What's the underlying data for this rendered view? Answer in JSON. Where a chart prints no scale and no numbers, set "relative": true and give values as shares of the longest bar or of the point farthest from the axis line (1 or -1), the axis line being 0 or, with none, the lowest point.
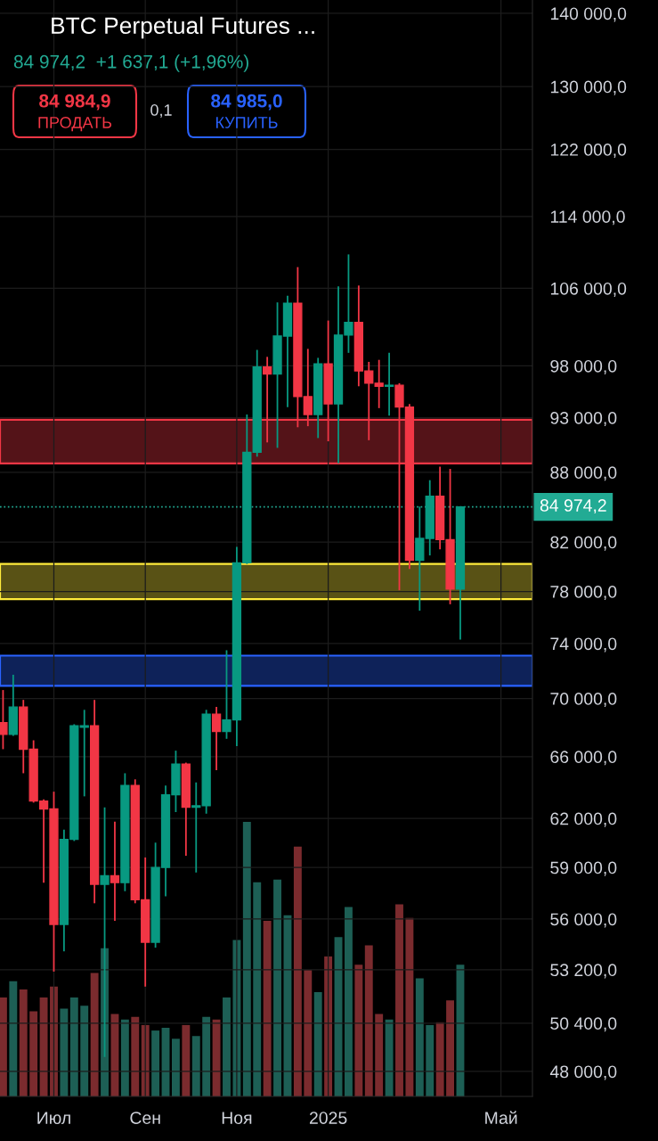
{
  "chart_data": [
    {
      "type": "candlestick",
      "title": "BTC Perpetual Futures ...",
      "subtitle": "84 974,2  +1 637,1 (+1,96%)",
      "annotations": [
        "84 984,9",
        "ПРОДАТЬ",
        "0,1",
        "84 985,0",
        "КУПИТЬ"
      ],
      "categories": [
        null,
        null,
        null,
        null,
        null,
        "Июл",
        null,
        null,
        null,
        null,
        null,
        null,
        null,
        null,
        "Сен",
        null,
        null,
        null,
        null,
        null,
        null,
        null,
        null,
        "Ноя",
        null,
        null,
        null,
        null,
        null,
        null,
        null,
        null,
        "2025",
        null,
        null,
        null,
        null,
        null,
        null,
        null,
        null,
        null,
        null,
        null,
        null,
        null,
        null,
        null,
        null,
        "Май",
        null,
        null,
        null
      ],
      "ohlc": [
        [
          68300,
          70600,
          66500,
          67500
        ],
        [
          67500,
          71700,
          67400,
          69400
        ],
        [
          69400,
          69900,
          64900,
          66500
        ],
        [
          66500,
          67100,
          63000,
          63100
        ],
        [
          63100,
          63200,
          58100,
          62600
        ],
        [
          62600,
          63700,
          53100,
          55700
        ],
        [
          55700,
          61300,
          54200,
          60700
        ],
        [
          60700,
          68200,
          60600,
          68100
        ],
        [
          68000,
          69200,
          63400,
          68100
        ],
        [
          68100,
          69900,
          56900,
          58000
        ],
        [
          58000,
          62700,
          48700,
          58500
        ],
        [
          58500,
          61800,
          55900,
          58100
        ],
        [
          58100,
          64900,
          57600,
          64100
        ],
        [
          64100,
          64500,
          56900,
          57100
        ],
        [
          57100,
          59600,
          52300,
          54700
        ],
        [
          54700,
          60500,
          54400,
          59000
        ],
        [
          59000,
          64100,
          57300,
          63500
        ],
        [
          63500,
          66400,
          62400,
          65500
        ],
        [
          65500,
          65600,
          59700,
          62700
        ],
        [
          62700,
          64300,
          58700,
          62800
        ],
        [
          62800,
          69200,
          62300,
          68900
        ],
        [
          68900,
          69400,
          65100,
          67700
        ],
        [
          67700,
          73500,
          67200,
          68500
        ],
        [
          68500,
          81600,
          66700,
          80300
        ],
        [
          80300,
          93300,
          80200,
          89800
        ],
        [
          89800,
          99600,
          89400,
          97900
        ],
        [
          97900,
          98900,
          90700,
          97200
        ],
        [
          97200,
          104500,
          90200,
          101000
        ],
        [
          101000,
          105200,
          94000,
          104400
        ],
        [
          104400,
          108300,
          92100,
          95000
        ],
        [
          95000,
          99700,
          92200,
          93300
        ],
        [
          93300,
          98800,
          91100,
          98200
        ],
        [
          98200,
          102600,
          90800,
          94300
        ],
        [
          94300,
          106200,
          88800,
          101100
        ],
        [
          101100,
          109700,
          99300,
          102400
        ],
        [
          102400,
          106300,
          96000,
          97500
        ],
        [
          97500,
          98400,
          90900,
          96300
        ],
        [
          96300,
          98600,
          93900,
          96000
        ],
        [
          96000,
          99300,
          93200,
          96100
        ],
        [
          96100,
          96300,
          78100,
          94000
        ],
        [
          94000,
          94300,
          79800,
          80500
        ],
        [
          80500,
          85000,
          76500,
          82300
        ],
        [
          82300,
          87300,
          80900,
          85900
        ],
        [
          85900,
          88500,
          81400,
          82200
        ],
        [
          82200,
          88300,
          77000,
          78200
        ],
        [
          78200,
          84974.2,
          74300,
          84974.2
        ],
        null,
        null,
        null,
        null,
        null,
        null,
        null
      ],
      "colors": [
        "#f23645",
        "#089981",
        "#f23645",
        "#f23645",
        "#f23645",
        "#f23645",
        "#089981",
        "#089981",
        "#089981",
        "#f23645",
        "#089981",
        "#f23645",
        "#089981",
        "#f23645",
        "#f23645",
        "#089981",
        "#089981",
        "#089981",
        "#f23645",
        "#089981",
        "#089981",
        "#f23645",
        "#089981",
        "#089981",
        "#089981",
        "#089981",
        "#f23645",
        "#089981",
        "#089981",
        "#f23645",
        "#f23645",
        "#089981",
        "#f23645",
        "#089981",
        "#089981",
        "#f23645",
        "#f23645",
        "#f23645",
        "#089981",
        "#f23645",
        "#f23645",
        "#089981",
        "#089981",
        "#f23645",
        "#f23645",
        "#089981",
        null,
        null,
        null,
        null,
        null,
        null,
        null
      ],
      "log": true,
      "ylim": [
        46800,
        141900
      ],
      "yticks": [
        {
          "value": 48000,
          "label": "48 000,0"
        },
        {
          "value": 50400,
          "label": "50 400,0"
        },
        {
          "value": 53200,
          "label": "53 200,0"
        },
        {
          "value": 56000,
          "label": "56 000,0"
        },
        {
          "value": 59000,
          "label": "59 000,0"
        },
        {
          "value": 62000,
          "label": "62 000,0"
        },
        {
          "value": 66000,
          "label": "66 000,0"
        },
        {
          "value": 70000,
          "label": "70 000,0"
        },
        {
          "value": 74000,
          "label": "74 000,0"
        },
        {
          "value": 78000,
          "label": "78 000,0"
        },
        {
          "value": 82000,
          "label": "82 000,0"
        },
        {
          "value": 88000,
          "label": "88 000,0"
        },
        {
          "value": 93000,
          "label": "93 000,0"
        },
        {
          "value": 98000,
          "label": "98 000,0"
        },
        {
          "value": 106000,
          "label": "106 000,0"
        },
        {
          "value": 114000,
          "label": "114 000,0"
        },
        {
          "value": 122000,
          "label": "122 000,0"
        },
        {
          "value": 130000,
          "label": "130 000,0"
        },
        {
          "value": 140000,
          "label": "140 000,0"
        }
      ],
      "grid": true,
      "ref_lines": [
        {
          "axis": "y",
          "value": 84974.2,
          "label": "84 974,2",
          "color": "#22ab94",
          "line_style": "dotted"
        }
      ],
      "bands": [
        {
          "axis": "y",
          "from": 88800,
          "to": 92800,
          "color": "#f23645"
        },
        {
          "axis": "y",
          "from": 77400,
          "to": 80200,
          "color": "#ffeb3b"
        },
        {
          "axis": "y",
          "from": 70900,
          "to": 73100,
          "color": "#2962ff"
        }
      ]
    },
    {
      "type": "bar",
      "relative": true,
      "categories": [
        null,
        null,
        null,
        null,
        null,
        null,
        null,
        null,
        null,
        null,
        null,
        null,
        null,
        null,
        null,
        null,
        null,
        null,
        null,
        null,
        null,
        null,
        null,
        null,
        null,
        null,
        null,
        null,
        null,
        null,
        null,
        null,
        null,
        null,
        null,
        null,
        null,
        null,
        null,
        null,
        null,
        null,
        null,
        null,
        null,
        null,
        null,
        null,
        null,
        null,
        null,
        null,
        null
      ],
      "values": [
        0.36,
        0.42,
        0.39,
        0.31,
        0.36,
        0.4,
        0.32,
        0.36,
        0.33,
        0.45,
        0.54,
        0.3,
        0.28,
        0.29,
        0.26,
        0.24,
        0.25,
        0.21,
        0.26,
        0.22,
        0.29,
        0.28,
        0.36,
        0.57,
        1,
        0.78,
        0.64,
        0.79,
        0.66,
        0.91,
        0.46,
        0.38,
        0.51,
        0.58,
        0.69,
        0.48,
        0.55,
        0.3,
        0.28,
        0.7,
        0.65,
        0.43,
        0.26,
        0.27,
        0.35,
        0.48,
        null,
        null,
        null,
        null,
        null,
        null,
        null
      ],
      "colors": [
        "#7b2b2e",
        "#1d5f55",
        "#7b2b2e",
        "#7b2b2e",
        "#7b2b2e",
        "#7b2b2e",
        "#1d5f55",
        "#1d5f55",
        "#1d5f55",
        "#7b2b2e",
        "#1d5f55",
        "#7b2b2e",
        "#1d5f55",
        "#7b2b2e",
        "#7b2b2e",
        "#1d5f55",
        "#1d5f55",
        "#1d5f55",
        "#7b2b2e",
        "#1d5f55",
        "#1d5f55",
        "#7b2b2e",
        "#1d5f55",
        "#1d5f55",
        "#1d5f55",
        "#1d5f55",
        "#7b2b2e",
        "#1d5f55",
        "#1d5f55",
        "#7b2b2e",
        "#7b2b2e",
        "#1d5f55",
        "#7b2b2e",
        "#1d5f55",
        "#1d5f55",
        "#7b2b2e",
        "#7b2b2e",
        "#7b2b2e",
        "#1d5f55",
        "#7b2b2e",
        "#7b2b2e",
        "#1d5f55",
        "#1d5f55",
        "#7b2b2e",
        "#7b2b2e",
        "#1d5f55",
        null,
        null,
        null,
        null,
        null,
        null,
        null
      ]
    }
  ]
}
